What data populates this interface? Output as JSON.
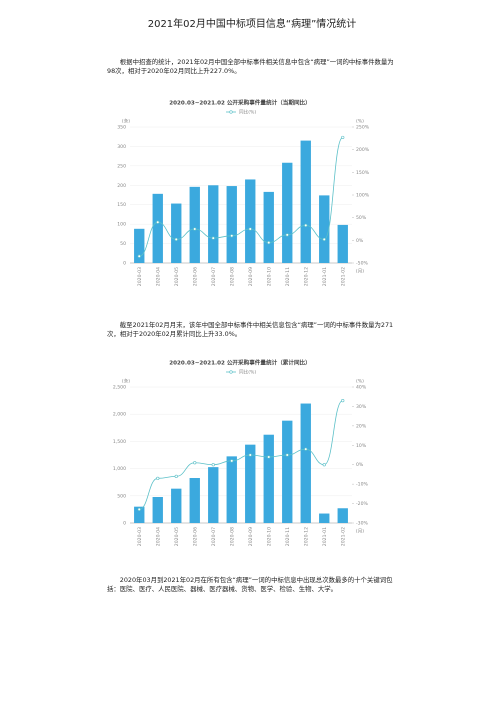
{
  "title": "2021年02月中国中标项目信息“病理”情况统计",
  "paragraphs": [
    "根据中招查的统计，2021年02月中国全部中标事件相关信息中包含“病理”一词的中标事件数量为98次，相对于2020年02月同比上升227.0%。",
    "截至2021年02月月末，该年中国全部中标事件中相关信息包含“病理”一词的中标事件数量为271次，相对于2020年02月累计同比上升33.0%。",
    "2020年03月到2021年02月在所有包含“病理”一词的中标信息中出现总次数最多的十个关键词包括：医院、医疗、人民医院、器械、医疗器械、货物、医学、检验、生物、大学。"
  ],
  "chart_data": [
    {
      "type": "bar",
      "title": "2020.03~2021.02 公开采购事件量统计（当期同比）",
      "y_label": "(条)",
      "y2_label": "(%)",
      "x_label": "(月)",
      "categories": [
        "2020-03",
        "2020-04",
        "2020-05",
        "2020-06",
        "2020-07",
        "2020-08",
        "2020-09",
        "2020-10",
        "2020-11",
        "2020-12",
        "2021-01",
        "2021-02"
      ],
      "series": [
        {
          "type": "bar",
          "color": "#3ba9de",
          "values": [
            88,
            178,
            153,
            196,
            200,
            198,
            215,
            183,
            258,
            315,
            174,
            98
          ]
        },
        {
          "type": "line",
          "name": "同比(%)",
          "color": "#5cc0c8",
          "axis": "y2",
          "values": [
            -35,
            40,
            2,
            25,
            5,
            10,
            25,
            -5,
            12,
            33,
            2,
            227
          ]
        }
      ],
      "ylim": [
        0,
        350
      ],
      "yticks": [
        0,
        50,
        100,
        150,
        200,
        250,
        300,
        350
      ],
      "y2lim": [
        -50,
        250
      ],
      "y2ticks": [
        {
          "value": -50,
          "label": "-50%"
        },
        {
          "value": 0,
          "label": "0%"
        },
        {
          "value": 50,
          "label": "50%"
        },
        {
          "value": 100,
          "label": "100%"
        },
        {
          "value": 150,
          "label": "150%"
        },
        {
          "value": 200,
          "label": "200%"
        },
        {
          "value": 250,
          "label": "250%"
        }
      ],
      "grid": true
    },
    {
      "type": "bar",
      "title": "2020.03~2021.02 公开采购事件量统计（累计同比）",
      "y_label": "(条)",
      "y2_label": "(%)",
      "x_label": "(月)",
      "categories": [
        "2020-03",
        "2020-04",
        "2020-05",
        "2020-06",
        "2020-07",
        "2020-08",
        "2020-09",
        "2020-10",
        "2020-11",
        "2020-12",
        "2021-01",
        "2021-02"
      ],
      "series": [
        {
          "type": "bar",
          "color": "#3ba9de",
          "values": [
            300,
            478,
            631,
            827,
            1027,
            1225,
            1440,
            1623,
            1881,
            2196,
            174,
            271
          ]
        },
        {
          "type": "line",
          "name": "同比(%)",
          "color": "#5cc0c8",
          "axis": "y2",
          "values": [
            -23,
            -7,
            -6,
            1,
            0,
            2,
            5,
            4,
            5,
            8,
            0,
            33
          ]
        }
      ],
      "ylim": [
        0,
        2500
      ],
      "yticks": [
        0,
        500,
        {
          "value": 1000,
          "label": "1,000"
        },
        {
          "value": 1500,
          "label": "1,500"
        },
        {
          "value": 2000,
          "label": "2,000"
        },
        {
          "value": 2500,
          "label": "2,500"
        }
      ],
      "y2lim": [
        -30,
        40
      ],
      "y2ticks": [
        {
          "value": -30,
          "label": "-30%"
        },
        {
          "value": -20,
          "label": "-20%"
        },
        {
          "value": -10,
          "label": "-10%"
        },
        {
          "value": 0,
          "label": "0%"
        },
        {
          "value": 10,
          "label": "10%"
        },
        {
          "value": 20,
          "label": "20%"
        },
        {
          "value": 30,
          "label": "30%"
        },
        {
          "value": 40,
          "label": "40%"
        }
      ],
      "grid": true
    }
  ]
}
